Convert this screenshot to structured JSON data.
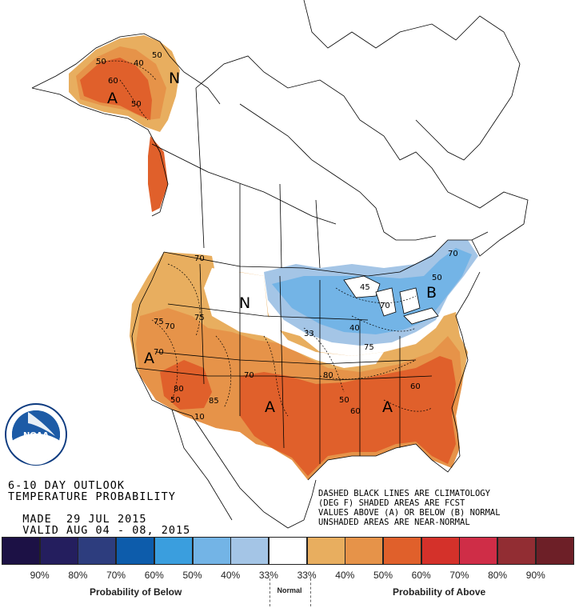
{
  "outlook": {
    "line1": "6-10 DAY OUTLOOK",
    "line2": "TEMPERATURE PROBABILITY",
    "made_label": "MADE",
    "made_date": "29 JUL 2015",
    "valid_label": "VALID",
    "valid_dates": "AUG 04 - 08, 2015"
  },
  "notes": {
    "line1": "DASHED BLACK LINES ARE CLIMATOLOGY",
    "line2": "(DEG F) SHADED AREAS ARE FCST",
    "line3": "VALUES ABOVE (A) OR BELOW (B) NORMAL",
    "line4": "UNSHADED AREAS ARE NEAR-NORMAL"
  },
  "map_letters": {
    "alaska_a": "A",
    "alaska_n": "N",
    "west_a": "A",
    "plains_n": "N",
    "southwest_a": "A",
    "southeast_a": "A",
    "northeast_b": "B"
  },
  "contour_values": {
    "ak_1": "50",
    "ak_2": "40",
    "ak_3": "50",
    "ak_4": "60",
    "ak_5": "50",
    "nw_1": "70",
    "w_1": "75",
    "w_2": "70",
    "w_3": "75",
    "w_4": "70",
    "w_5": "80",
    "w_6": "50",
    "w_7": "85",
    "w_8": "10",
    "w_9": "70",
    "c_1": "33",
    "c_2": "40",
    "c_3": "75",
    "c_4": "70",
    "c_5": "80",
    "se_1": "50",
    "se_2": "60",
    "se_3": "60",
    "ne_1": "45",
    "ne_2": "50",
    "ne_3": "70"
  },
  "legend": {
    "colors": [
      "#1c1145",
      "#241e5e",
      "#2d3d7e",
      "#0d5cab",
      "#3a9ede",
      "#73b4e6",
      "#a4c5e6",
      "#ffffff",
      "#e8ae5f",
      "#e69349",
      "#e0602b",
      "#d4312a",
      "#cf2d47",
      "#922d33",
      "#6d1f27"
    ],
    "below_labels": [
      "90%",
      "80%",
      "70%",
      "60%",
      "50%",
      "40%",
      "33%"
    ],
    "above_labels": [
      "33%",
      "40%",
      "50%",
      "60%",
      "70%",
      "80%",
      "90%"
    ],
    "below_title": "Probability of Below",
    "normal_title": "Normal",
    "above_title": "Probability of Above"
  },
  "logo": {
    "text": "NOAA",
    "ring_text": "NATIONAL OCEANIC AND ATMOSPHERIC ADMINISTRATION",
    "ring_text_bottom": "U.S. DEPARTMENT OF COMMERCE"
  },
  "icons": [
    "noaa-logo-icon"
  ]
}
